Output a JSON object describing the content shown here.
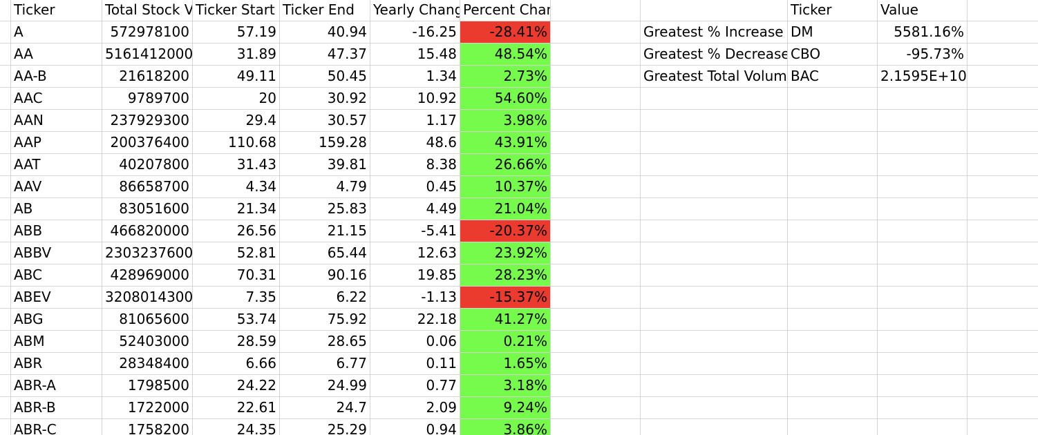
{
  "colors": {
    "gridline": "#d4d4d4",
    "positive_fill": "#76fa4c",
    "negative_fill": "#eb3b2e"
  },
  "headers": {
    "ticker": "Ticker",
    "total_stock_volume": "Total Stock V",
    "ticker_start": "Ticker Start",
    "ticker_end": "Ticker End",
    "yearly_change": "Yearly Chang",
    "percent_change": "Percent Change"
  },
  "rows": [
    {
      "ticker": "A",
      "volume": "572978100",
      "start": "57.19",
      "end": "40.94",
      "change": "-16.25",
      "percent": "-28.41%",
      "status": "negative"
    },
    {
      "ticker": "AA",
      "volume": "5161412000",
      "start": "31.89",
      "end": "47.37",
      "change": "15.48",
      "percent": "48.54%",
      "status": "positive"
    },
    {
      "ticker": "AA-B",
      "volume": "21618200",
      "start": "49.11",
      "end": "50.45",
      "change": "1.34",
      "percent": "2.73%",
      "status": "positive"
    },
    {
      "ticker": "AAC",
      "volume": "9789700",
      "start": "20",
      "end": "30.92",
      "change": "10.92",
      "percent": "54.60%",
      "status": "positive"
    },
    {
      "ticker": "AAN",
      "volume": "237929300",
      "start": "29.4",
      "end": "30.57",
      "change": "1.17",
      "percent": "3.98%",
      "status": "positive"
    },
    {
      "ticker": "AAP",
      "volume": "200376400",
      "start": "110.68",
      "end": "159.28",
      "change": "48.6",
      "percent": "43.91%",
      "status": "positive"
    },
    {
      "ticker": "AAT",
      "volume": "40207800",
      "start": "31.43",
      "end": "39.81",
      "change": "8.38",
      "percent": "26.66%",
      "status": "positive"
    },
    {
      "ticker": "AAV",
      "volume": "86658700",
      "start": "4.34",
      "end": "4.79",
      "change": "0.45",
      "percent": "10.37%",
      "status": "positive"
    },
    {
      "ticker": "AB",
      "volume": "83051600",
      "start": "21.34",
      "end": "25.83",
      "change": "4.49",
      "percent": "21.04%",
      "status": "positive"
    },
    {
      "ticker": "ABB",
      "volume": "466820000",
      "start": "26.56",
      "end": "21.15",
      "change": "-5.41",
      "percent": "-20.37%",
      "status": "negative"
    },
    {
      "ticker": "ABBV",
      "volume": "2303237600",
      "start": "52.81",
      "end": "65.44",
      "change": "12.63",
      "percent": "23.92%",
      "status": "positive"
    },
    {
      "ticker": "ABC",
      "volume": "428969000",
      "start": "70.31",
      "end": "90.16",
      "change": "19.85",
      "percent": "28.23%",
      "status": "positive"
    },
    {
      "ticker": "ABEV",
      "volume": "3208014300",
      "start": "7.35",
      "end": "6.22",
      "change": "-1.13",
      "percent": "-15.37%",
      "status": "negative"
    },
    {
      "ticker": "ABG",
      "volume": "81065600",
      "start": "53.74",
      "end": "75.92",
      "change": "22.18",
      "percent": "41.27%",
      "status": "positive"
    },
    {
      "ticker": "ABM",
      "volume": "52403000",
      "start": "28.59",
      "end": "28.65",
      "change": "0.06",
      "percent": "0.21%",
      "status": "positive"
    },
    {
      "ticker": "ABR",
      "volume": "28348400",
      "start": "6.66",
      "end": "6.77",
      "change": "0.11",
      "percent": "1.65%",
      "status": "positive"
    },
    {
      "ticker": "ABR-A",
      "volume": "1798500",
      "start": "24.22",
      "end": "24.99",
      "change": "0.77",
      "percent": "3.18%",
      "status": "positive"
    },
    {
      "ticker": "ABR-B",
      "volume": "1722000",
      "start": "22.61",
      "end": "24.7",
      "change": "2.09",
      "percent": "9.24%",
      "status": "positive"
    },
    {
      "ticker": "ABR-C",
      "volume": "1758200",
      "start": "24.35",
      "end": "25.29",
      "change": "0.94",
      "percent": "3.86%",
      "status": "positive"
    }
  ],
  "summary": {
    "headers": {
      "ticker": "Ticker",
      "value": "Value"
    },
    "rows": [
      {
        "label": "Greatest % Increase",
        "ticker": "DM",
        "value": "5581.16%"
      },
      {
        "label": "Greatest % Decrease",
        "ticker": "CBO",
        "value": "-95.73%"
      },
      {
        "label": "Greatest Total Volum",
        "ticker": "BAC",
        "value": "2.1595E+10"
      }
    ]
  }
}
